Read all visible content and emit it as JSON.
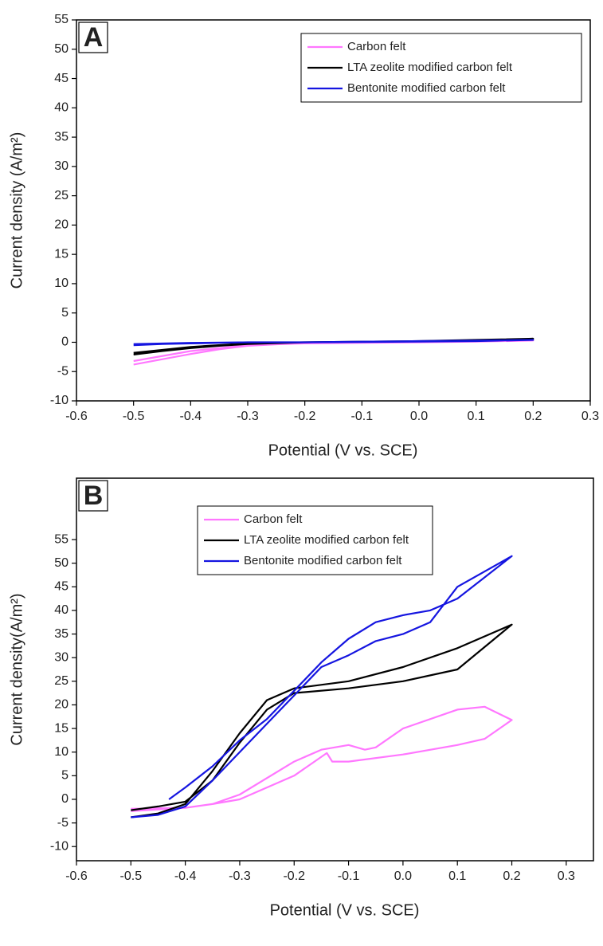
{
  "chart_data": [
    {
      "type": "line",
      "panel_label": "A",
      "xlabel": "Potential (V vs. SCE)",
      "ylabel": "Current density (A/m²)",
      "xlim": [
        -0.6,
        0.3
      ],
      "ylim": [
        -10,
        55
      ],
      "xticks": [
        -0.6,
        -0.5,
        -0.4,
        -0.3,
        -0.2,
        -0.1,
        {
          "value": 0,
          "label": "0.0"
        },
        0.1,
        0.2,
        0.3
      ],
      "yticks": [
        -10,
        -5,
        0,
        5,
        10,
        15,
        20,
        25,
        30,
        35,
        40,
        45,
        50,
        55
      ],
      "legend": "upper right",
      "series": [
        {
          "name": "Carbon felt",
          "color": "#ff77ff",
          "x": [
            -0.5,
            -0.45,
            -0.4,
            -0.35,
            -0.3,
            -0.2,
            -0.1,
            0,
            0.1,
            0.2,
            0.1,
            0,
            -0.1,
            -0.2,
            -0.3,
            -0.4,
            -0.5
          ],
          "values": [
            -3.8,
            -2.9,
            -2,
            -1.2,
            -0.6,
            -0.1,
            0,
            0.1,
            0.15,
            0.3,
            0.1,
            0,
            -0.1,
            -0.2,
            -0.5,
            -1.5,
            -3.2
          ]
        },
        {
          "name": "LTA zeolite modified carbon felt",
          "color": "#000000",
          "x": [
            -0.5,
            -0.45,
            -0.4,
            -0.35,
            -0.3,
            -0.2,
            -0.1,
            0,
            0.1,
            0.2,
            0.1,
            0,
            -0.1,
            -0.2,
            -0.3,
            -0.4,
            -0.5
          ],
          "values": [
            -2.1,
            -1.5,
            -1,
            -0.6,
            -0.3,
            0,
            0.1,
            0.2,
            0.35,
            0.6,
            0.4,
            0.2,
            0.1,
            0,
            -0.2,
            -0.8,
            -1.8
          ]
        },
        {
          "name": "Bentonite modified carbon felt",
          "color": "#1515e0",
          "x": [
            -0.5,
            -0.45,
            -0.4,
            -0.35,
            -0.3,
            -0.2,
            -0.1,
            0,
            0.1,
            0.2,
            0.1,
            0,
            -0.1,
            -0.2,
            -0.3,
            -0.4,
            -0.5
          ],
          "values": [
            -0.5,
            -0.3,
            -0.2,
            -0.1,
            0,
            0,
            0.05,
            0.1,
            0.2,
            0.4,
            0.3,
            0.2,
            0.1,
            0,
            0,
            -0.1,
            -0.3
          ]
        }
      ]
    },
    {
      "type": "line",
      "panel_label": "B",
      "xlabel": "Potential (V vs. SCE)",
      "ylabel": "Current density(A/m²)",
      "xlim": [
        -0.6,
        0.35
      ],
      "ylim": [
        -13,
        68
      ],
      "xticks": [
        -0.6,
        -0.5,
        -0.4,
        -0.3,
        -0.2,
        -0.1,
        {
          "value": 0,
          "label": "0.0"
        },
        0.1,
        0.2,
        0.3
      ],
      "yticks": [
        -10,
        -5,
        0,
        5,
        10,
        15,
        20,
        25,
        30,
        35,
        40,
        45,
        50,
        55
      ],
      "legend": "upper center",
      "series": [
        {
          "name": "Carbon felt",
          "color": "#ff77ff",
          "x": [
            -0.5,
            -0.4,
            -0.35,
            -0.3,
            -0.2,
            -0.14,
            -0.13,
            -0.1,
            0,
            0.1,
            0.15,
            0.2,
            0.15,
            0.1,
            0,
            -0.05,
            -0.07,
            -0.1,
            -0.15,
            -0.2,
            -0.3,
            -0.35,
            -0.4,
            -0.5
          ],
          "values": [
            -2.5,
            -1.8,
            -1,
            0,
            5,
            9.8,
            8,
            8,
            9.5,
            11.5,
            12.8,
            16.8,
            19.6,
            19,
            15,
            11,
            10.5,
            11.5,
            10.5,
            8,
            1,
            -1,
            -1.8,
            -2
          ]
        },
        {
          "name": "LTA zeolite modified carbon felt",
          "color": "#000000",
          "x": [
            -0.5,
            -0.45,
            -0.4,
            -0.35,
            -0.3,
            -0.25,
            -0.2,
            -0.1,
            0,
            0.1,
            0.2,
            0.1,
            0,
            -0.1,
            -0.2,
            -0.25,
            -0.3,
            -0.35,
            -0.4,
            -0.45,
            -0.5
          ],
          "values": [
            -2.3,
            -1.5,
            -0.5,
            4,
            12,
            19,
            22.5,
            23.5,
            25,
            27.5,
            37,
            32,
            28,
            25,
            23.5,
            21,
            14,
            6,
            -1,
            -3,
            -3.8
          ]
        },
        {
          "name": "Bentonite modified carbon felt",
          "color": "#1515e0",
          "x": [
            -0.43,
            -0.4,
            -0.35,
            -0.3,
            -0.25,
            -0.2,
            -0.15,
            -0.1,
            -0.05,
            0,
            0.05,
            0.1,
            0.2,
            0.1,
            0.05,
            0,
            -0.05,
            -0.1,
            -0.15,
            -0.2,
            -0.25,
            -0.3,
            -0.35,
            -0.4,
            -0.45,
            -0.5
          ],
          "values": [
            0,
            2.5,
            7,
            12.5,
            17,
            23,
            29,
            34,
            37.5,
            39,
            40,
            42.5,
            51.5,
            45,
            37.5,
            35,
            33.5,
            30.5,
            28,
            22,
            16,
            10,
            4,
            -1.5,
            -3.3,
            -3.8
          ]
        }
      ]
    }
  ]
}
